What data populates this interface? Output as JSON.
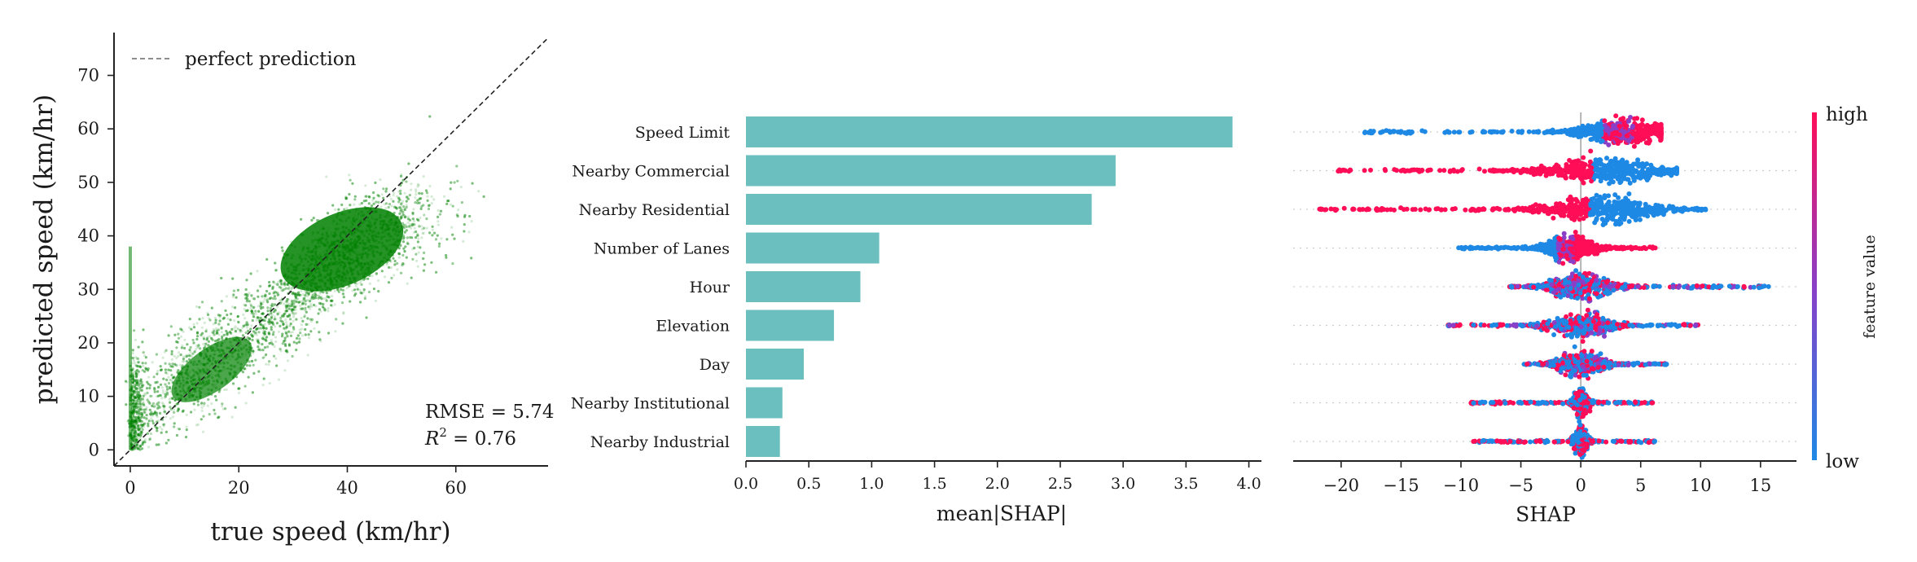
{
  "colors": {
    "scatter": "#008000",
    "bar": "#6bbfbf",
    "shap_low": "#1e88e5",
    "shap_high": "#ff0d57",
    "reference": "#666666"
  },
  "chart_data": [
    {
      "type": "scatter",
      "xlabel": "true speed (km/hr)",
      "ylabel": "predicted speed (km/hr)",
      "xlim": [
        -3,
        77
      ],
      "ylim": [
        -3,
        78
      ],
      "xticks": [
        0,
        20,
        40,
        60
      ],
      "yticks": [
        0,
        10,
        20,
        30,
        40,
        50,
        60,
        70
      ],
      "legend": "perfect prediction",
      "legend_position": "top-left",
      "reference_line": "y = x",
      "annotation_rmse": "RMSE = 5.74",
      "annotation_r2_prefix": "R",
      "annotation_r2_sup": "2",
      "annotation_r2_value": " = 0.76",
      "density_trend": [
        {
          "x": 0,
          "y": 6
        },
        {
          "x": 10,
          "y": 13
        },
        {
          "x": 20,
          "y": 20
        },
        {
          "x": 30,
          "y": 29
        },
        {
          "x": 40,
          "y": 37
        },
        {
          "x": 50,
          "y": 42
        },
        {
          "x": 60,
          "y": 44
        }
      ],
      "grid": false
    },
    {
      "type": "bar",
      "orientation": "horizontal",
      "categories": [
        "Speed Limit",
        "Nearby Commercial",
        "Nearby Residential",
        "Number of Lanes",
        "Hour",
        "Elevation",
        "Day",
        "Nearby Institutional",
        "Nearby Industrial"
      ],
      "values": [
        3.87,
        2.94,
        2.75,
        1.06,
        0.91,
        0.7,
        0.46,
        0.29,
        0.27
      ],
      "xlabel": "mean|SHAP|",
      "xlim": [
        0,
        4.1
      ],
      "xticks": [
        "0.0",
        "0.5",
        "1.0",
        "1.5",
        "2.0",
        "2.5",
        "3.0",
        "3.5",
        "4.0"
      ],
      "grid": false
    },
    {
      "type": "scatter",
      "subtype": "beeswarm",
      "xlabel": "SHAP",
      "xlim": [
        -24,
        18
      ],
      "xticks": [
        "−20",
        "−15",
        "−10",
        "−5",
        "0",
        "5",
        "10",
        "15"
      ],
      "xtick_values": [
        -20,
        -15,
        -10,
        -5,
        0,
        5,
        10,
        15
      ],
      "colorbar_label": "feature value",
      "colorbar_high": "high",
      "colorbar_low": "low",
      "rows": [
        {
          "min": -18.3,
          "max": 6.7,
          "center": 3.5,
          "width": 2.8,
          "low_side": "left"
        },
        {
          "min": -20.5,
          "max": 8.0,
          "center": 2.0,
          "width": 3.5,
          "low_side": "right"
        },
        {
          "min": -21.8,
          "max": 10.5,
          "center": 1.8,
          "width": 3.5,
          "low_side": "right"
        },
        {
          "min": -10.2,
          "max": 6.4,
          "center": -1.0,
          "width": 1.6,
          "low_side": "left"
        },
        {
          "min": -6.3,
          "max": 15.8,
          "center": 0.0,
          "width": 2.0,
          "low_side": "mixed"
        },
        {
          "min": -11.3,
          "max": 9.8,
          "center": 0.0,
          "width": 2.0,
          "low_side": "mixed"
        },
        {
          "min": -4.8,
          "max": 7.8,
          "center": 0.0,
          "width": 1.5,
          "low_side": "mixed"
        },
        {
          "min": -9.5,
          "max": 6.0,
          "center": 0.0,
          "width": 0.4,
          "low_side": "center"
        },
        {
          "min": -9.0,
          "max": 6.3,
          "center": 0.0,
          "width": 0.4,
          "low_side": "center"
        }
      ]
    }
  ]
}
